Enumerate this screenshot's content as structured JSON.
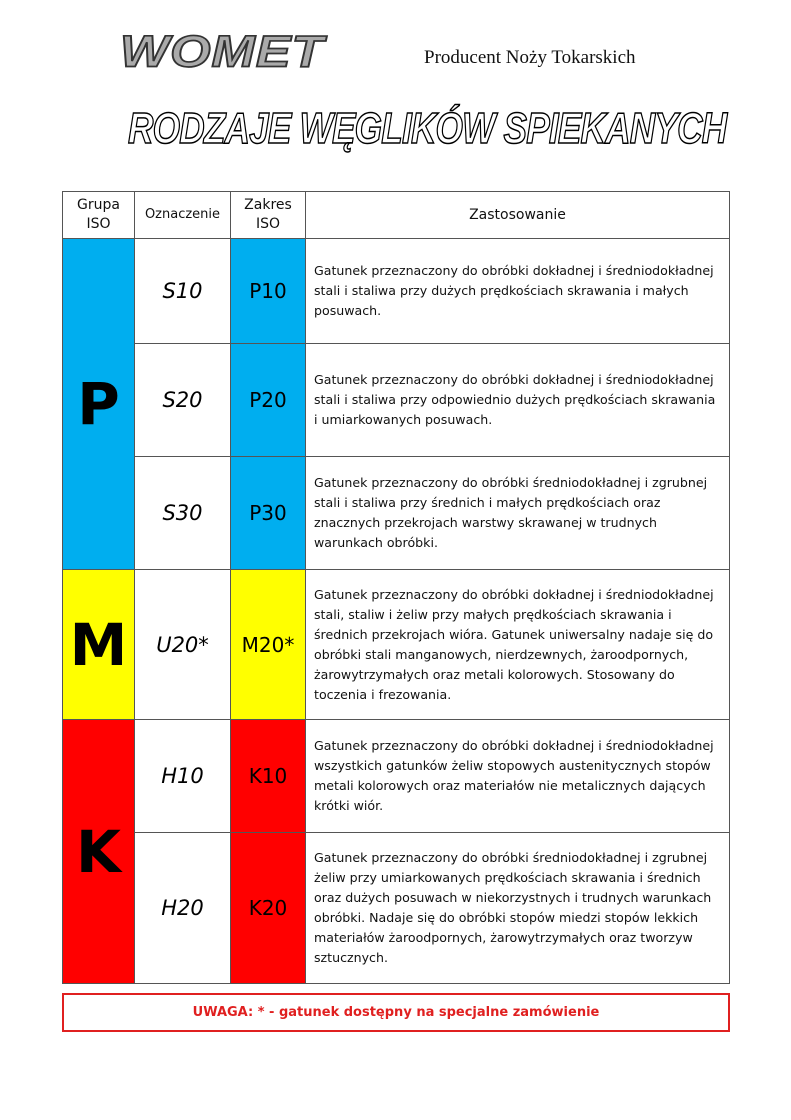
{
  "header": {
    "logo": "WOMET",
    "tagline": "Producent Noży Tokarskich",
    "title": "RODZAJE WĘGLIKÓW SPIEKANYCH"
  },
  "table": {
    "columns": [
      "Grupa ISO",
      "Oznaczenie",
      "Zakres ISO",
      "Zastosowanie"
    ],
    "groups": [
      {
        "label": "P",
        "color": "#00aeef",
        "rows": [
          {
            "designation": "S10",
            "iso": "P10",
            "usage": "Gatunek przeznaczony do obróbki dokładnej i średniodokładnej stali i staliwa przy dużych prędkościach skrawania i małych posuwach."
          },
          {
            "designation": "S20",
            "iso": "P20",
            "usage": "Gatunek przeznaczony do obróbki dokładnej i średniodokładnej stali i staliwa przy odpowiednio dużych prędkościach skrawania i umiarkowanych posuwach."
          },
          {
            "designation": "S30",
            "iso": "P30",
            "usage": "Gatunek przeznaczony do obróbki średniodokładnej i zgrubnej stali i staliwa przy średnich i małych prędkościach oraz znacznych przekrojach warstwy skrawanej w trudnych warunkach obróbki."
          }
        ]
      },
      {
        "label": "M",
        "color": "#ffff00",
        "rows": [
          {
            "designation": "U20*",
            "iso": "M20*",
            "usage": "Gatunek przeznaczony do obróbki dokładnej i średniodokładnej stali, staliw i żeliw przy małych prędkościach skrawania i średnich przekrojach wióra. Gatunek uniwersalny nadaje się do obróbki stali manganowych, nierdzewnych, żaroodpornych, żarowytrzymałych oraz metali kolorowych. Stosowany do toczenia i frezowania."
          }
        ]
      },
      {
        "label": "K",
        "color": "#ff0000",
        "rows": [
          {
            "designation": "H10",
            "iso": "K10",
            "usage": "Gatunek przeznaczony do obróbki dokładnej i średniodokładnej wszystkich gatunków żeliw stopowych austenitycznych stopów metali kolorowych oraz materiałów nie metalicznych dających krótki wiór."
          },
          {
            "designation": "H20",
            "iso": "K20",
            "usage": "Gatunek przeznaczony do obróbki średniodokładnej i zgrubnej żeliw przy umiarkowanych prędkościach skrawania i średnich oraz dużych posuwach w niekorzystnych i trudnych warunkach obróbki. Nadaje się do obróbki stopów miedzi stopów lekkich materiałów żaroodpornych, żarowytrzymałych oraz tworzyw sztucznych."
          }
        ]
      }
    ]
  },
  "note": "UWAGA: * - gatunek dostępny na specjalne zamówienie"
}
